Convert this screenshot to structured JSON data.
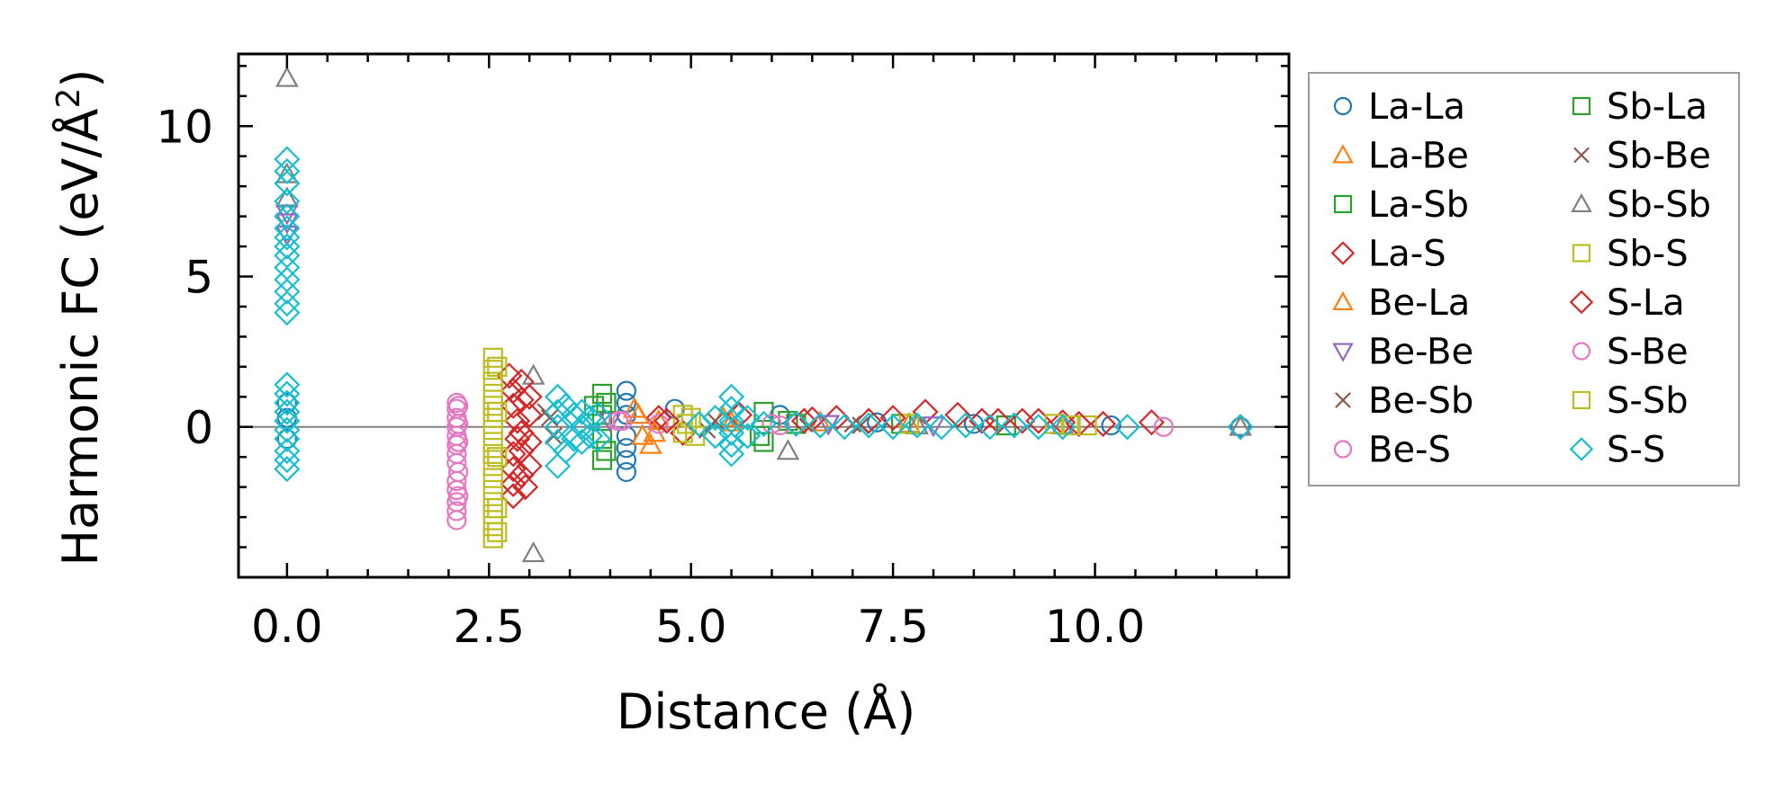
{
  "chart_data": {
    "type": "scatter",
    "title": "",
    "xlabel": "Distance (Å)",
    "ylabel_parts": [
      "Harmonic FC (eV/Å",
      "2",
      ")"
    ],
    "xlim": [
      -0.6,
      12.4
    ],
    "ylim": [
      -5.0,
      12.4
    ],
    "xticks": [
      0.0,
      2.5,
      5.0,
      7.5,
      10.0
    ],
    "xtick_labels": [
      "0.0",
      "2.5",
      "5.0",
      "7.5",
      "10.0"
    ],
    "yticks": [
      0,
      5,
      10
    ],
    "ytick_labels": [
      "0",
      "5",
      "10"
    ],
    "grid": false,
    "legend_position": "outside-right",
    "reference_line_y": 0,
    "series": [
      {
        "name": "La-La",
        "marker": "circle",
        "color": "#1f77b4",
        "points": [
          [
            0.0,
            0.8
          ],
          [
            0.0,
            0.3
          ],
          [
            0.0,
            -0.4
          ],
          [
            4.2,
            1.2
          ],
          [
            4.2,
            0.8
          ],
          [
            4.2,
            0.4
          ],
          [
            4.2,
            -0.3
          ],
          [
            4.2,
            -0.7
          ],
          [
            4.2,
            -1.1
          ],
          [
            4.2,
            -1.5
          ],
          [
            4.8,
            0.6
          ],
          [
            6.1,
            0.4
          ],
          [
            7.3,
            0.15
          ],
          [
            8.5,
            0.1
          ],
          [
            10.2,
            0.05
          ],
          [
            11.8,
            0.0
          ]
        ]
      },
      {
        "name": "La-Be",
        "marker": "triangle-up",
        "color": "#ff7f0e",
        "points": [
          [
            4.3,
            0.6
          ],
          [
            4.4,
            -0.3
          ],
          [
            4.5,
            -0.6
          ],
          [
            4.6,
            0.2
          ],
          [
            5.4,
            0.3
          ],
          [
            6.6,
            0.15
          ],
          [
            7.7,
            0.1
          ]
        ]
      },
      {
        "name": "La-Sb",
        "marker": "square",
        "color": "#2ca02c",
        "points": [
          [
            3.8,
            0.7
          ],
          [
            3.9,
            1.1
          ],
          [
            3.9,
            0.4
          ],
          [
            3.9,
            -0.4
          ],
          [
            3.9,
            -1.1
          ],
          [
            5.9,
            0.5
          ],
          [
            5.9,
            -0.5
          ],
          [
            6.2,
            0.2
          ],
          [
            7.6,
            0.1
          ],
          [
            8.9,
            0.05
          ]
        ]
      },
      {
        "name": "La-S",
        "marker": "diamond",
        "color": "#d62728",
        "points": [
          [
            2.75,
            1.7
          ],
          [
            2.8,
            1.2
          ],
          [
            2.8,
            0.7
          ],
          [
            2.85,
            0.2
          ],
          [
            2.85,
            -0.4
          ],
          [
            2.8,
            -0.9
          ],
          [
            2.8,
            -1.4
          ],
          [
            2.8,
            -1.9
          ],
          [
            2.8,
            -2.3
          ],
          [
            3.0,
            1.0
          ],
          [
            3.0,
            0.4
          ],
          [
            3.0,
            -0.5
          ],
          [
            3.0,
            -1.3
          ],
          [
            4.6,
            0.3
          ],
          [
            4.9,
            -0.2
          ],
          [
            5.6,
            0.4
          ],
          [
            6.5,
            0.25
          ],
          [
            6.8,
            0.3
          ],
          [
            7.2,
            0.2
          ],
          [
            7.9,
            0.5
          ],
          [
            8.3,
            0.4
          ],
          [
            8.8,
            0.2
          ],
          [
            9.3,
            0.2
          ],
          [
            9.6,
            0.15
          ],
          [
            10.1,
            0.1
          ],
          [
            10.7,
            0.15
          ],
          [
            11.8,
            0.0
          ]
        ]
      },
      {
        "name": "Be-La",
        "marker": "triangle-up",
        "color": "#ff7f0e",
        "points": [
          [
            4.35,
            0.4
          ],
          [
            4.55,
            -0.2
          ],
          [
            5.5,
            0.15
          ]
        ]
      },
      {
        "name": "Be-Be",
        "marker": "triangle-down",
        "color": "#9467bd",
        "points": [
          [
            0.0,
            7.1
          ],
          [
            0.0,
            6.8
          ],
          [
            0.0,
            6.4
          ],
          [
            4.0,
            0.2
          ],
          [
            6.7,
            0.1
          ],
          [
            8.0,
            0.05
          ]
        ]
      },
      {
        "name": "Be-Sb",
        "marker": "x",
        "color": "#8c564b",
        "points": [
          [
            3.2,
            0.5
          ],
          [
            3.3,
            -0.3
          ],
          [
            5.3,
            0.2
          ],
          [
            7.0,
            0.1
          ]
        ]
      },
      {
        "name": "Be-S",
        "marker": "circle",
        "color": "#e377c2",
        "points": [
          [
            2.1,
            0.8
          ],
          [
            2.1,
            0.6
          ],
          [
            2.1,
            0.3
          ],
          [
            2.1,
            0.0
          ],
          [
            2.1,
            -0.3
          ],
          [
            2.1,
            -0.6
          ],
          [
            2.1,
            -0.9
          ],
          [
            2.1,
            -1.2
          ],
          [
            2.1,
            -1.8
          ],
          [
            2.1,
            -2.1
          ],
          [
            2.1,
            -2.5
          ],
          [
            2.1,
            -2.8
          ],
          [
            2.1,
            -3.1
          ],
          [
            4.15,
            0.2
          ],
          [
            4.6,
            0.1
          ],
          [
            6.0,
            0.1
          ],
          [
            10.85,
            0.0
          ]
        ]
      },
      {
        "name": "Sb-La",
        "marker": "square",
        "color": "#2ca02c",
        "points": [
          [
            3.95,
            0.8
          ],
          [
            3.95,
            -0.8
          ],
          [
            5.85,
            -0.3
          ],
          [
            6.3,
            0.1
          ]
        ]
      },
      {
        "name": "Sb-Be",
        "marker": "x",
        "color": "#8c564b",
        "points": [
          [
            3.25,
            0.3
          ],
          [
            5.2,
            -0.1
          ],
          [
            7.1,
            0.05
          ]
        ]
      },
      {
        "name": "Sb-Sb",
        "marker": "triangle-up",
        "color": "#7f7f7f",
        "points": [
          [
            0.0,
            11.6
          ],
          [
            0.0,
            8.4
          ],
          [
            0.0,
            7.6
          ],
          [
            3.05,
            1.7
          ],
          [
            3.05,
            -4.2
          ],
          [
            6.2,
            -0.8
          ],
          [
            7.8,
            0.05
          ],
          [
            9.6,
            0.05
          ],
          [
            11.8,
            0.0
          ]
        ]
      },
      {
        "name": "Sb-S",
        "marker": "square",
        "color": "#bcbd22",
        "points": [
          [
            2.55,
            2.3
          ],
          [
            2.55,
            1.9
          ],
          [
            2.55,
            1.5
          ],
          [
            2.55,
            1.1
          ],
          [
            2.55,
            0.7
          ],
          [
            2.55,
            0.3
          ],
          [
            2.55,
            -0.1
          ],
          [
            2.55,
            -0.5
          ],
          [
            2.55,
            -0.9
          ],
          [
            2.55,
            -1.3
          ],
          [
            2.55,
            -1.7
          ],
          [
            2.55,
            -2.1
          ],
          [
            2.55,
            -2.5
          ],
          [
            2.55,
            -2.9
          ],
          [
            2.55,
            -3.3
          ],
          [
            2.55,
            -3.7
          ],
          [
            4.9,
            0.4
          ],
          [
            4.9,
            -0.2
          ],
          [
            4.95,
            0.1
          ],
          [
            7.7,
            0.1
          ],
          [
            9.5,
            0.1
          ],
          [
            9.9,
            0.05
          ]
        ]
      },
      {
        "name": "S-La",
        "marker": "diamond",
        "color": "#d62728",
        "points": [
          [
            2.9,
            1.5
          ],
          [
            2.9,
            0.9
          ],
          [
            2.9,
            -0.2
          ],
          [
            2.9,
            -0.8
          ],
          [
            2.9,
            -1.6
          ],
          [
            2.95,
            -2.0
          ],
          [
            4.7,
            0.2
          ],
          [
            6.4,
            0.2
          ],
          [
            7.5,
            0.3
          ],
          [
            8.6,
            0.2
          ],
          [
            9.1,
            0.2
          ],
          [
            9.8,
            0.1
          ]
        ]
      },
      {
        "name": "S-Be",
        "marker": "circle",
        "color": "#e377c2",
        "points": [
          [
            2.12,
            0.7
          ],
          [
            2.12,
            0.1
          ],
          [
            2.12,
            -0.5
          ],
          [
            2.12,
            -1.5
          ],
          [
            2.12,
            -2.3
          ],
          [
            4.1,
            0.2
          ],
          [
            6.1,
            0.05
          ]
        ]
      },
      {
        "name": "S-Sb",
        "marker": "square",
        "color": "#bcbd22",
        "points": [
          [
            2.6,
            2.0
          ],
          [
            2.6,
            0.5
          ],
          [
            2.6,
            -1.0
          ],
          [
            2.6,
            -2.7
          ],
          [
            2.6,
            -3.5
          ],
          [
            5.0,
            0.3
          ],
          [
            5.05,
            -0.3
          ],
          [
            9.7,
            0.05
          ]
        ]
      },
      {
        "name": "S-S",
        "marker": "diamond",
        "color": "#17becf",
        "points": [
          [
            0.0,
            8.9
          ],
          [
            0.0,
            8.5
          ],
          [
            0.0,
            8.1
          ],
          [
            0.0,
            7.5
          ],
          [
            0.0,
            7.0
          ],
          [
            0.0,
            6.6
          ],
          [
            0.0,
            6.3
          ],
          [
            0.0,
            6.0
          ],
          [
            0.0,
            5.7
          ],
          [
            0.0,
            5.3
          ],
          [
            0.0,
            4.9
          ],
          [
            0.0,
            4.5
          ],
          [
            0.0,
            4.1
          ],
          [
            0.0,
            3.8
          ],
          [
            0.0,
            1.4
          ],
          [
            0.0,
            1.1
          ],
          [
            0.0,
            0.8
          ],
          [
            0.0,
            0.5
          ],
          [
            0.0,
            0.2
          ],
          [
            0.0,
            -0.1
          ],
          [
            0.0,
            -0.4
          ],
          [
            0.0,
            -0.8
          ],
          [
            0.0,
            -1.1
          ],
          [
            0.0,
            -1.4
          ],
          [
            3.35,
            1.0
          ],
          [
            3.35,
            0.5
          ],
          [
            3.35,
            0.0
          ],
          [
            3.35,
            -0.5
          ],
          [
            3.35,
            -1.3
          ],
          [
            3.45,
            0.7
          ],
          [
            3.45,
            -0.8
          ],
          [
            3.55,
            0.4
          ],
          [
            3.55,
            -0.4
          ],
          [
            3.65,
            0.5
          ],
          [
            3.65,
            0.0
          ],
          [
            3.65,
            -0.5
          ],
          [
            3.75,
            0.3
          ],
          [
            3.75,
            -0.3
          ],
          [
            3.85,
            0.4
          ],
          [
            3.85,
            -0.4
          ],
          [
            5.5,
            1.0
          ],
          [
            5.5,
            0.6
          ],
          [
            5.5,
            0.2
          ],
          [
            5.5,
            -0.2
          ],
          [
            5.5,
            -0.6
          ],
          [
            5.5,
            -0.9
          ],
          [
            5.3,
            0.3
          ],
          [
            5.3,
            -0.3
          ],
          [
            5.7,
            0.3
          ],
          [
            5.7,
            -0.3
          ],
          [
            5.1,
            0.1
          ],
          [
            5.9,
            0.1
          ],
          [
            6.3,
            0.1
          ],
          [
            6.6,
            0.05
          ],
          [
            6.9,
            0.0
          ],
          [
            7.2,
            0.05
          ],
          [
            7.5,
            0.0
          ],
          [
            7.8,
            0.05
          ],
          [
            8.1,
            0.0
          ],
          [
            8.4,
            0.05
          ],
          [
            8.7,
            0.0
          ],
          [
            9.0,
            0.05
          ],
          [
            9.3,
            0.0
          ],
          [
            9.6,
            0.0
          ],
          [
            10.4,
            0.0
          ],
          [
            11.8,
            0.0
          ]
        ]
      }
    ]
  }
}
